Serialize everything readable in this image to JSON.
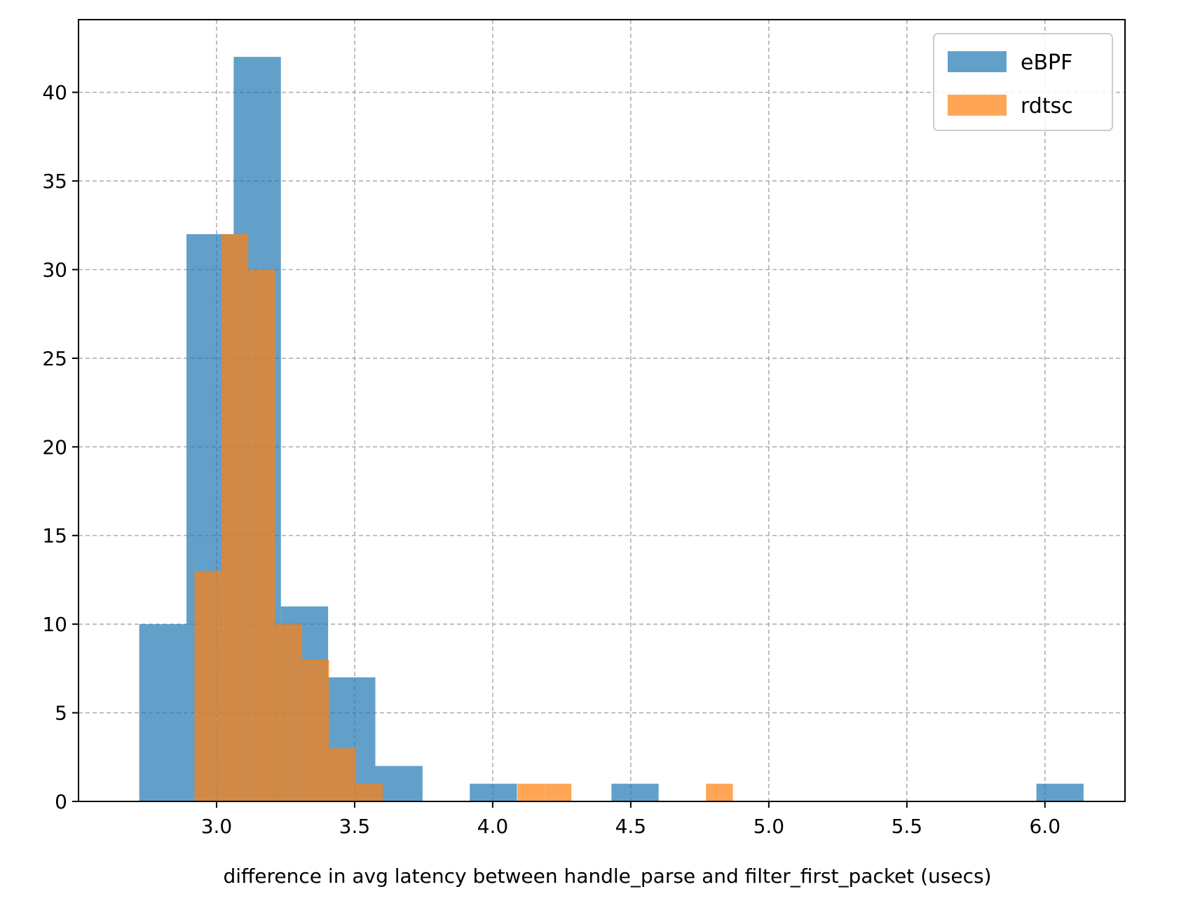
{
  "chart_data": {
    "type": "bar",
    "subtype": "overlaid-histogram",
    "title": "",
    "xlabel": "difference in avg latency between handle_parse and filter_first_packet (usecs)",
    "ylabel": "",
    "xlim": [
      2.5,
      6.29
    ],
    "ylim": [
      0,
      44.1
    ],
    "xticks": [
      3.0,
      3.5,
      4.0,
      4.5,
      5.0,
      5.5,
      6.0
    ],
    "xtick_labels": [
      "3.0",
      "3.5",
      "4.0",
      "4.5",
      "5.0",
      "5.5",
      "6.0"
    ],
    "yticks": [
      0,
      5,
      10,
      15,
      20,
      25,
      30,
      35,
      40
    ],
    "ytick_labels": [
      "0",
      "5",
      "10",
      "15",
      "20",
      "25",
      "30",
      "35",
      "40"
    ],
    "grid": true,
    "legend_position": "top-right",
    "series": [
      {
        "name": "eBPF",
        "color": "#1f77b4",
        "opacity": 0.7,
        "bin_edges": [
          2.72,
          2.891,
          3.062,
          3.233,
          3.404,
          3.575,
          3.746,
          3.917,
          4.088,
          4.259,
          4.43,
          4.601,
          4.772,
          4.943,
          5.114,
          5.285,
          5.456,
          5.627,
          5.798,
          5.969,
          6.14
        ],
        "counts": [
          10,
          32,
          42,
          11,
          7,
          2,
          0,
          1,
          0,
          0,
          1,
          0,
          0,
          0,
          0,
          0,
          0,
          0,
          0,
          1
        ]
      },
      {
        "name": "rdtsc",
        "color": "#ff7f0e",
        "opacity": 0.7,
        "bin_edges": [
          2.92,
          3.0175,
          3.115,
          3.2125,
          3.31,
          3.4075,
          3.505,
          3.6025,
          3.7,
          3.7975,
          3.895,
          3.9925,
          4.09,
          4.1875,
          4.285,
          4.3825,
          4.48,
          4.5775,
          4.675,
          4.7725,
          4.87
        ],
        "counts": [
          13,
          32,
          30,
          10,
          8,
          3,
          1,
          0,
          0,
          0,
          0,
          0,
          1,
          1,
          0,
          0,
          0,
          0,
          0,
          1
        ]
      }
    ]
  }
}
